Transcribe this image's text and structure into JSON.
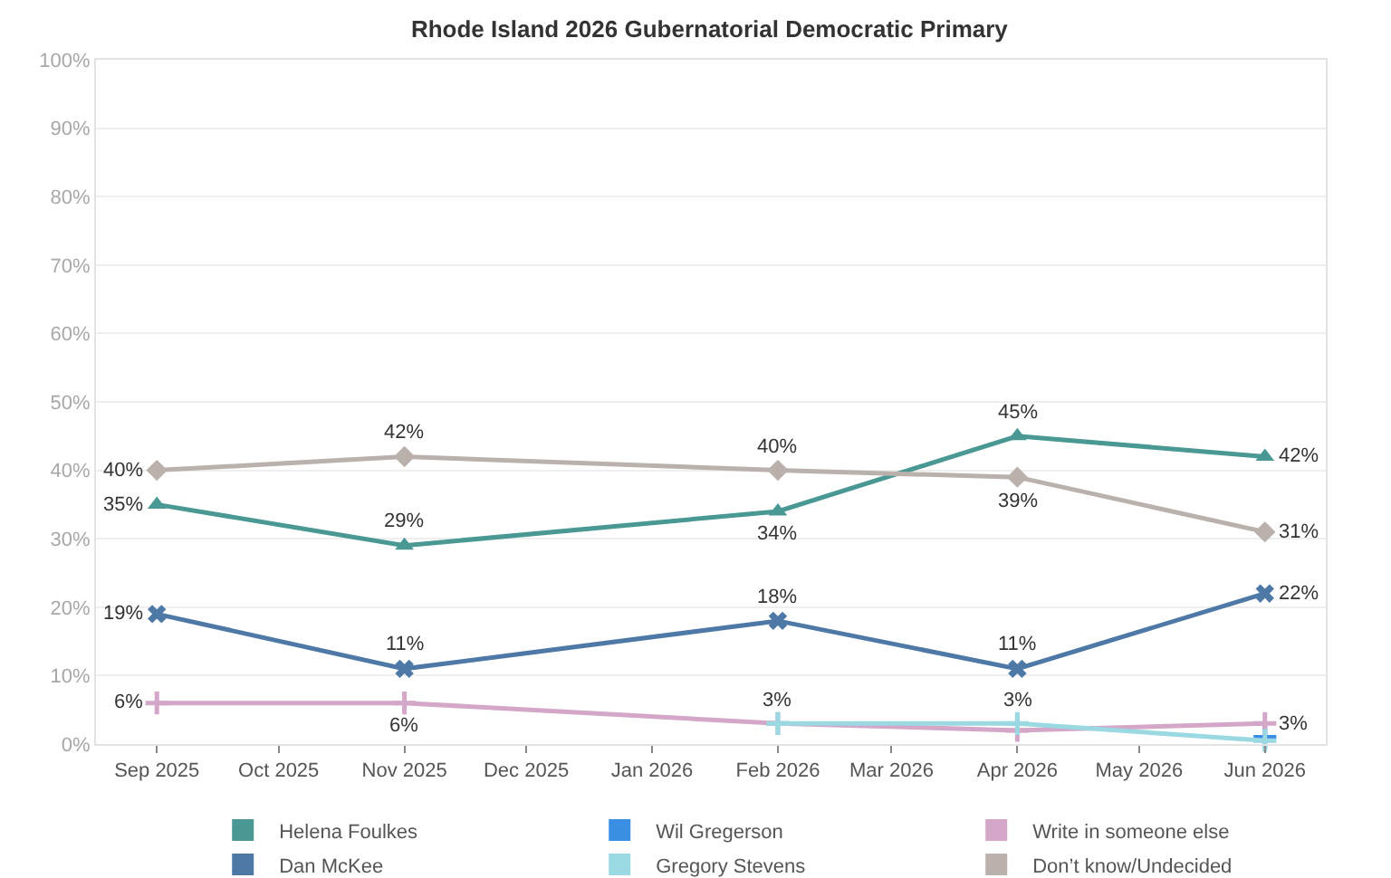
{
  "chart_data": {
    "type": "line",
    "title": "Rhode Island 2026 Gubernatorial Democratic Primary",
    "x": [
      "2025-09",
      "2025-11",
      "2026-02",
      "2026-04",
      "2026-06"
    ],
    "series": [
      {
        "name": "Helena Foulkes",
        "color": "#499894",
        "marker": "triangle",
        "values": [
          35,
          29,
          34,
          45,
          42
        ],
        "value_labels": [
          "35%",
          "29%",
          "34%",
          "45%",
          "42%"
        ]
      },
      {
        "name": "Wil Gregerson",
        "color": "#3a8fe4",
        "marker": "cross",
        "values": [
          null,
          null,
          null,
          null,
          1
        ],
        "value_labels": [
          null,
          null,
          null,
          null,
          null
        ]
      },
      {
        "name": "Write in someone else",
        "color": "#d4a6c8",
        "marker": "cross",
        "values": [
          6,
          6,
          3,
          2,
          3
        ],
        "value_labels": [
          "6%",
          "6%",
          null,
          null,
          "3%"
        ]
      },
      {
        "name": "Dan McKee",
        "color": "#4e79a7",
        "marker": "x",
        "values": [
          19,
          11,
          18,
          11,
          22
        ],
        "value_labels": [
          "19%",
          "11%",
          "18%",
          "11%",
          "22%"
        ]
      },
      {
        "name": "Gregory Stevens",
        "color": "#9ad8e2",
        "marker": "cross",
        "values": [
          null,
          null,
          3,
          3,
          0.5
        ],
        "value_labels": [
          null,
          null,
          "3%",
          "3%",
          null
        ]
      },
      {
        "name": "Don’t know/Undecided",
        "color": "#bab0ac",
        "marker": "diamond",
        "values": [
          40,
          42,
          40,
          39,
          31
        ],
        "value_labels": [
          "40%",
          "42%",
          "40%",
          "39%",
          "31%"
        ]
      }
    ],
    "xlim": [
      "2025-08-17",
      "2026-06-16"
    ],
    "xticks": [
      {
        "value": "2025-09",
        "label": "Sep 2025"
      },
      {
        "value": "2025-10",
        "label": "Oct 2025"
      },
      {
        "value": "2025-11",
        "label": "Nov 2025"
      },
      {
        "value": "2025-12",
        "label": "Dec 2025"
      },
      {
        "value": "2026-01",
        "label": "Jan 2026"
      },
      {
        "value": "2026-02",
        "label": "Feb 2026"
      },
      {
        "value": "2026-03",
        "label": "Mar 2026"
      },
      {
        "value": "2026-04",
        "label": "Apr 2026"
      },
      {
        "value": "2026-05",
        "label": "May 2026"
      },
      {
        "value": "2026-06",
        "label": "Jun 2026"
      }
    ],
    "ylim": [
      0,
      100
    ],
    "yticks": [
      {
        "value": 0,
        "label": "0%"
      },
      {
        "value": 10,
        "label": "10%"
      },
      {
        "value": 20,
        "label": "20%"
      },
      {
        "value": 30,
        "label": "30%"
      },
      {
        "value": 40,
        "label": "40%"
      },
      {
        "value": 50,
        "label": "50%"
      },
      {
        "value": 60,
        "label": "60%"
      },
      {
        "value": 70,
        "label": "70%"
      },
      {
        "value": 80,
        "label": "80%"
      },
      {
        "value": 90,
        "label": "90%"
      },
      {
        "value": 100,
        "label": "100%"
      }
    ],
    "grid": "y",
    "legend": "bottom"
  }
}
